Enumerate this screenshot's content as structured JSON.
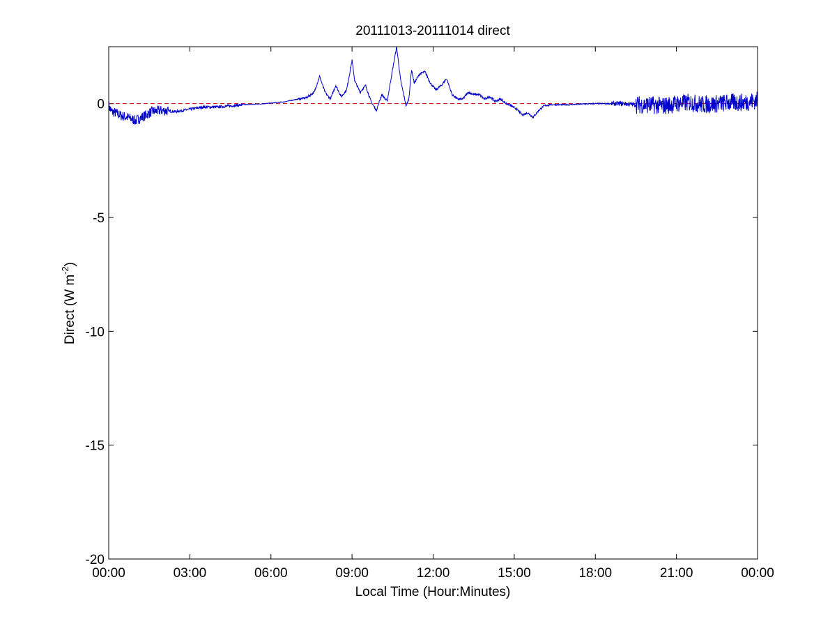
{
  "chart_data": {
    "type": "line",
    "title": "20111013-20111014 direct",
    "xlabel": "Local Time (Hour:Minutes)",
    "ylabel": {
      "prefix": "Direct (W m",
      "superscript": "-2",
      "suffix": ")"
    },
    "x_unit": "hours",
    "xlim": [
      0,
      24
    ],
    "ylim": [
      -20,
      2.5
    ],
    "x_ticks": [
      0,
      3,
      6,
      9,
      12,
      15,
      18,
      21,
      24
    ],
    "x_tick_labels": [
      "00:00",
      "03:00",
      "06:00",
      "09:00",
      "12:00",
      "15:00",
      "18:00",
      "21:00",
      "00:00"
    ],
    "y_ticks": [
      -20,
      -15,
      -10,
      -5,
      0
    ],
    "y_tick_labels": [
      "-20",
      "-15",
      "-10",
      "-5",
      "0"
    ],
    "grid": false,
    "legend": "none",
    "reference_line": {
      "y": 0,
      "style": "dashed",
      "color": "#cc0000"
    },
    "series": [
      {
        "color": "#0000cc",
        "noisy": true,
        "x": [
          0,
          0.1,
          0.25,
          0.4,
          0.5,
          0.7,
          1.0,
          1.3,
          1.6,
          2.0,
          2.5,
          3.0,
          3.5,
          4.0,
          4.5,
          5.0,
          5.5,
          6.0,
          6.5,
          7.0,
          7.3,
          7.6,
          7.8,
          8.0,
          8.2,
          8.4,
          8.6,
          8.8,
          9.0,
          9.1,
          9.3,
          9.5,
          9.7,
          9.9,
          10.1,
          10.3,
          10.5,
          10.65,
          10.8,
          11.0,
          11.1,
          11.2,
          11.3,
          11.5,
          11.7,
          11.9,
          12.1,
          12.3,
          12.5,
          12.7,
          12.9,
          13.1,
          13.3,
          13.5,
          13.7,
          13.9,
          14.1,
          14.3,
          14.5,
          14.7,
          14.9,
          15.1,
          15.3,
          15.5,
          15.7,
          15.9,
          16.1,
          16.3,
          16.6,
          17.0,
          17.5,
          18.0,
          18.5,
          19.0,
          19.5,
          20.0,
          20.5,
          21.0,
          21.5,
          22.0,
          22.5,
          23.0,
          23.5,
          24.0
        ],
        "y": [
          -0.1,
          -0.35,
          -0.4,
          -0.5,
          -0.55,
          -0.6,
          -0.75,
          -0.55,
          -0.35,
          -0.3,
          -0.35,
          -0.25,
          -0.15,
          -0.15,
          -0.1,
          -0.05,
          -0.02,
          0.02,
          0.08,
          0.2,
          0.25,
          0.5,
          1.2,
          0.5,
          0.2,
          0.8,
          0.3,
          0.6,
          1.9,
          1.0,
          0.5,
          0.8,
          0.1,
          -0.3,
          0.4,
          0.1,
          1.5,
          2.5,
          1.0,
          -0.1,
          0.2,
          1.5,
          0.9,
          1.3,
          1.4,
          0.9,
          0.6,
          0.8,
          1.1,
          0.4,
          0.2,
          0.2,
          0.5,
          0.4,
          0.4,
          0.2,
          0.3,
          0.1,
          0.2,
          0.0,
          -0.1,
          -0.25,
          -0.5,
          -0.4,
          -0.6,
          -0.3,
          -0.1,
          -0.05,
          -0.05,
          -0.05,
          -0.02,
          0.0,
          0.0,
          0.0,
          -0.05,
          -0.05,
          -0.1,
          0.0,
          0.05,
          -0.05,
          0.0,
          0.05,
          0.05,
          0.15
        ]
      }
    ]
  }
}
